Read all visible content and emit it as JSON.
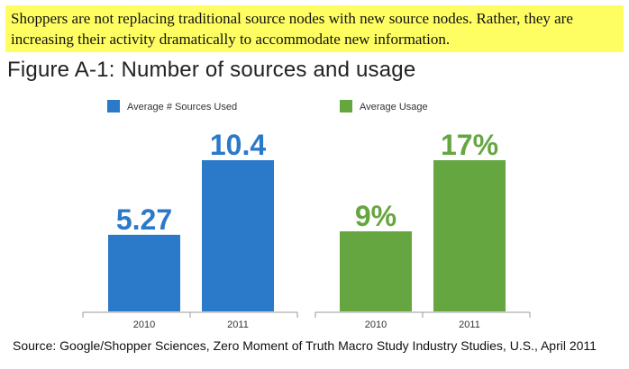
{
  "callout": {
    "text": "Shoppers are not replacing traditional source nodes with new source nodes. Rather, they are increasing their activity dramatically to accommodate new information."
  },
  "figure_title": "Figure A-1: Number of sources and usage",
  "source_note": "Source: Google/Shopper Sciences, Zero Moment of Truth Macro Study Industry Studies, U.S., April 2011",
  "colors": {
    "blue": "#2b7ac9",
    "green": "#66a641",
    "axis": "#9a9a9a",
    "highlight": "#fefe62"
  },
  "chart_data": [
    {
      "type": "bar",
      "categories": [
        "2010",
        "2011"
      ],
      "series": [
        {
          "name": "Average # Sources Used",
          "values": [
            5.27,
            10.4
          ]
        }
      ],
      "data_labels": [
        "5.27",
        "10.4"
      ],
      "ylim": [
        0,
        10.4
      ],
      "legend": "top-left",
      "grid": false
    },
    {
      "type": "bar",
      "categories": [
        "2010",
        "2011"
      ],
      "series": [
        {
          "name": "Average Usage",
          "values": [
            9,
            17
          ]
        }
      ],
      "data_labels": [
        "9%",
        "17%"
      ],
      "ylim": [
        0,
        17
      ],
      "legend": "top-left",
      "grid": false
    }
  ]
}
